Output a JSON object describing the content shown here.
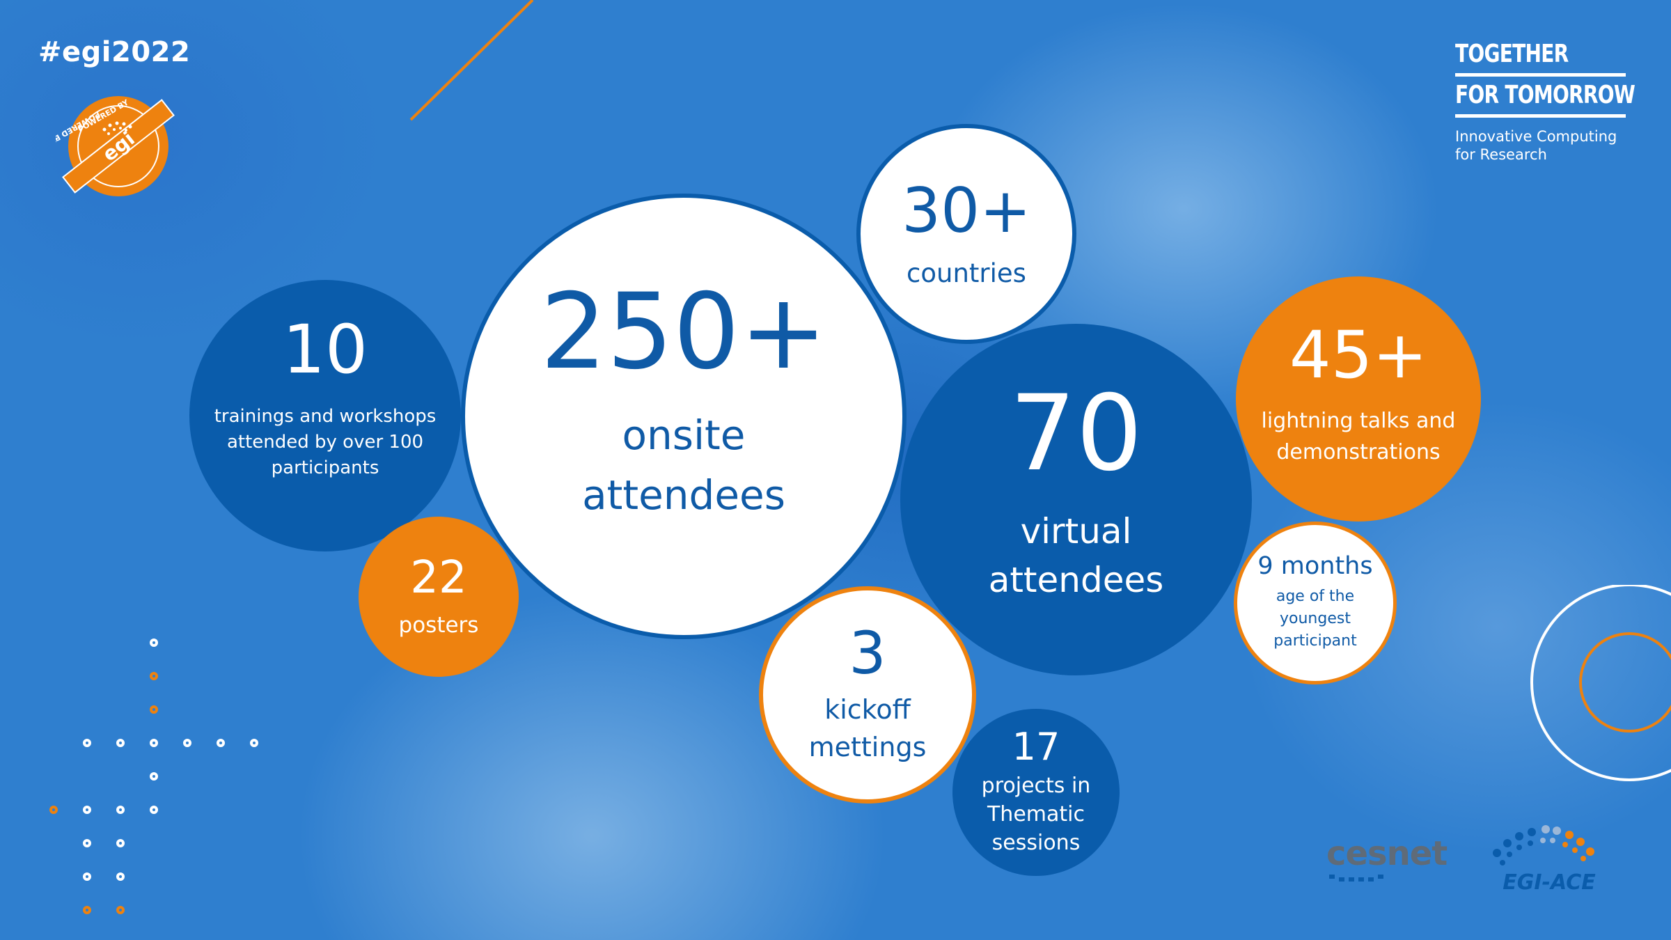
{
  "hashtag": "#egi2022",
  "badge": {
    "top_text": "POWERED BY",
    "bottom_text": "POWERED BY",
    "logo": "egi"
  },
  "brand": {
    "line1": "TOGETHER",
    "line2": "FOR TOMORROW",
    "subtitle_line1": "Innovative Computing",
    "subtitle_line2": "for Research"
  },
  "stats": {
    "onsite": {
      "value": "250+",
      "label_line1": "onsite",
      "label_line2": "attendees"
    },
    "countries": {
      "value": "30+",
      "label": "countries"
    },
    "trainings": {
      "value": "10",
      "label_line1": "trainings and workshops",
      "label_line2": "attended by over 100",
      "label_line3": "participants"
    },
    "posters": {
      "value": "22",
      "label": "posters"
    },
    "virtual": {
      "value": "70",
      "label_line1": "virtual",
      "label_line2": "attendees"
    },
    "kickoff": {
      "value": "3",
      "label_line1": "kickoff",
      "label_line2": "mettings"
    },
    "projects": {
      "value": "17",
      "label_line1": "projects in",
      "label_line2": "Thematic",
      "label_line3": "sessions"
    },
    "lightning": {
      "value": "45+",
      "label_line1": "lightning talks and",
      "label_line2": "demonstrations"
    },
    "youngest": {
      "value": "9 months",
      "label_line1": "age of the",
      "label_line2": "youngest",
      "label_line3": "participant"
    }
  },
  "partners": {
    "cesnet": "cesnet",
    "egi_ace": "EGI-ACE"
  },
  "colors": {
    "navy": "#0a5cab",
    "orange": "#ee820f",
    "white": "#ffffff",
    "background": "#2f7fcf"
  }
}
